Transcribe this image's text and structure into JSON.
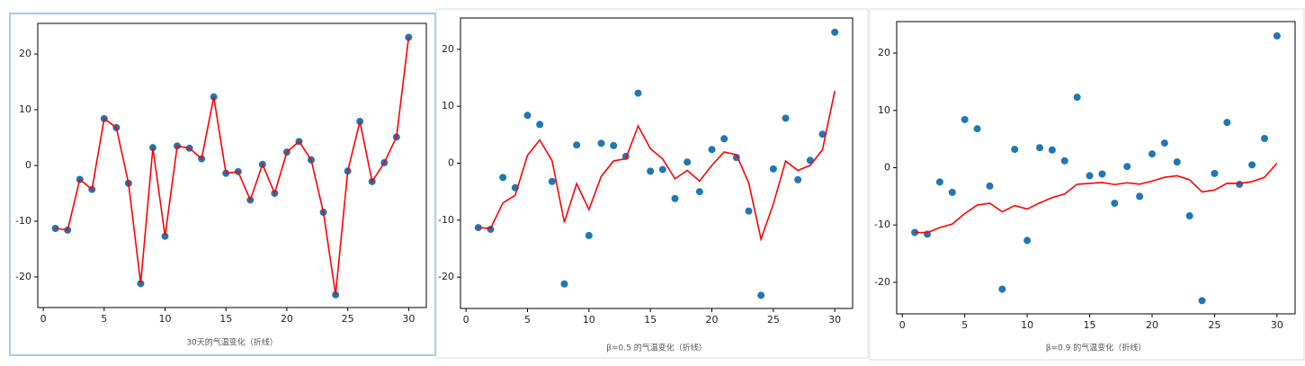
{
  "chart_data": [
    {
      "type": "line",
      "xlabel": "30天的气温变化（折线）",
      "x": [
        1,
        2,
        3,
        4,
        5,
        6,
        7,
        8,
        9,
        10,
        11,
        12,
        13,
        14,
        15,
        16,
        17,
        18,
        19,
        20,
        21,
        22,
        23,
        24,
        25,
        26,
        27,
        28,
        29,
        30
      ],
      "series": [
        {
          "type": "scatter",
          "color": "#1f77b4",
          "values": [
            -11.3,
            -11.6,
            -2.5,
            -4.3,
            8.4,
            6.8,
            -3.2,
            -21.2,
            3.2,
            -12.7,
            3.5,
            3.1,
            1.2,
            12.3,
            -1.4,
            -1.1,
            -6.2,
            0.2,
            -5.0,
            2.4,
            4.3,
            1.0,
            -8.4,
            -23.2,
            -1.0,
            7.9,
            -2.9,
            0.5,
            5.1,
            23.0
          ]
        },
        {
          "type": "line",
          "color": "#ff0000",
          "values": [
            -11.3,
            -11.6,
            -2.5,
            -4.3,
            8.4,
            6.8,
            -3.2,
            -21.2,
            3.2,
            -12.7,
            3.5,
            3.1,
            1.2,
            12.3,
            -1.4,
            -1.1,
            -6.2,
            0.2,
            -5.0,
            2.4,
            4.3,
            1.0,
            -8.4,
            -23.2,
            -1.0,
            7.9,
            -2.9,
            0.5,
            5.1,
            23.0
          ]
        }
      ],
      "xlim": [
        -0.45,
        31.45
      ],
      "xticks": [
        0,
        5,
        10,
        15,
        20,
        25,
        30
      ],
      "ylim": [
        -25.5,
        25.5
      ],
      "yticks": [
        -20,
        -10,
        0,
        10,
        20
      ],
      "grid": false
    },
    {
      "type": "line",
      "xlabel": "β=0.5 的气温变化（折线）",
      "x": [
        1,
        2,
        3,
        4,
        5,
        6,
        7,
        8,
        9,
        10,
        11,
        12,
        13,
        14,
        15,
        16,
        17,
        18,
        19,
        20,
        21,
        22,
        23,
        24,
        25,
        26,
        27,
        28,
        29,
        30
      ],
      "series": [
        {
          "type": "scatter",
          "color": "#1f77b4",
          "values": [
            -11.3,
            -11.6,
            -2.5,
            -4.3,
            8.4,
            6.8,
            -3.2,
            -21.2,
            3.2,
            -12.7,
            3.5,
            3.1,
            1.2,
            12.3,
            -1.4,
            -1.1,
            -6.2,
            0.2,
            -5.0,
            2.4,
            4.3,
            1.0,
            -8.4,
            -23.2,
            -1.0,
            7.9,
            -2.9,
            0.5,
            5.1,
            23.0
          ]
        },
        {
          "type": "line",
          "color": "#ff0000",
          "values": [
            -11.3,
            -11.45,
            -6.98,
            -5.64,
            1.38,
            4.09,
            0.45,
            -10.38,
            -3.59,
            -8.14,
            -2.32,
            0.39,
            0.8,
            6.55,
            2.57,
            0.74,
            -2.73,
            -1.27,
            -3.13,
            -0.37,
            1.97,
            1.48,
            -3.46,
            -13.33,
            -7.17,
            0.37,
            -1.27,
            -0.38,
            2.36,
            12.68
          ]
        }
      ],
      "xlim": [
        -0.45,
        31.45
      ],
      "xticks": [
        0,
        5,
        10,
        15,
        20,
        25,
        30
      ],
      "ylim": [
        -25.5,
        25.5
      ],
      "yticks": [
        -20,
        -10,
        0,
        10,
        20
      ],
      "grid": false
    },
    {
      "type": "line",
      "xlabel": "β=0.9 的气温变化（折线）",
      "x": [
        1,
        2,
        3,
        4,
        5,
        6,
        7,
        8,
        9,
        10,
        11,
        12,
        13,
        14,
        15,
        16,
        17,
        18,
        19,
        20,
        21,
        22,
        23,
        24,
        25,
        26,
        27,
        28,
        29,
        30
      ],
      "series": [
        {
          "type": "scatter",
          "color": "#1f77b4",
          "values": [
            -11.3,
            -11.6,
            -2.5,
            -4.3,
            8.4,
            6.8,
            -3.2,
            -21.2,
            3.2,
            -12.7,
            3.5,
            3.1,
            1.2,
            12.3,
            -1.4,
            -1.1,
            -6.2,
            0.2,
            -5.0,
            2.4,
            4.3,
            1.0,
            -8.4,
            -23.2,
            -1.0,
            7.9,
            -2.9,
            0.5,
            5.1,
            23.0
          ]
        },
        {
          "type": "line",
          "color": "#ff0000",
          "values": [
            -11.3,
            -11.33,
            -10.45,
            -9.83,
            -8.0,
            -6.52,
            -6.19,
            -7.69,
            -6.6,
            -7.21,
            -6.14,
            -5.22,
            -4.58,
            -2.89,
            -2.74,
            -2.58,
            -2.94,
            -2.63,
            -2.87,
            -2.34,
            -1.68,
            -1.41,
            -2.11,
            -4.22,
            -3.9,
            -2.72,
            -2.74,
            -2.42,
            -1.67,
            0.8
          ]
        }
      ],
      "xlim": [
        -0.45,
        31.45
      ],
      "xticks": [
        0,
        5,
        10,
        15,
        20,
        25,
        30
      ],
      "ylim": [
        -25.5,
        25.5
      ],
      "yticks": [
        -20,
        -10,
        0,
        10,
        20
      ],
      "grid": false
    }
  ]
}
